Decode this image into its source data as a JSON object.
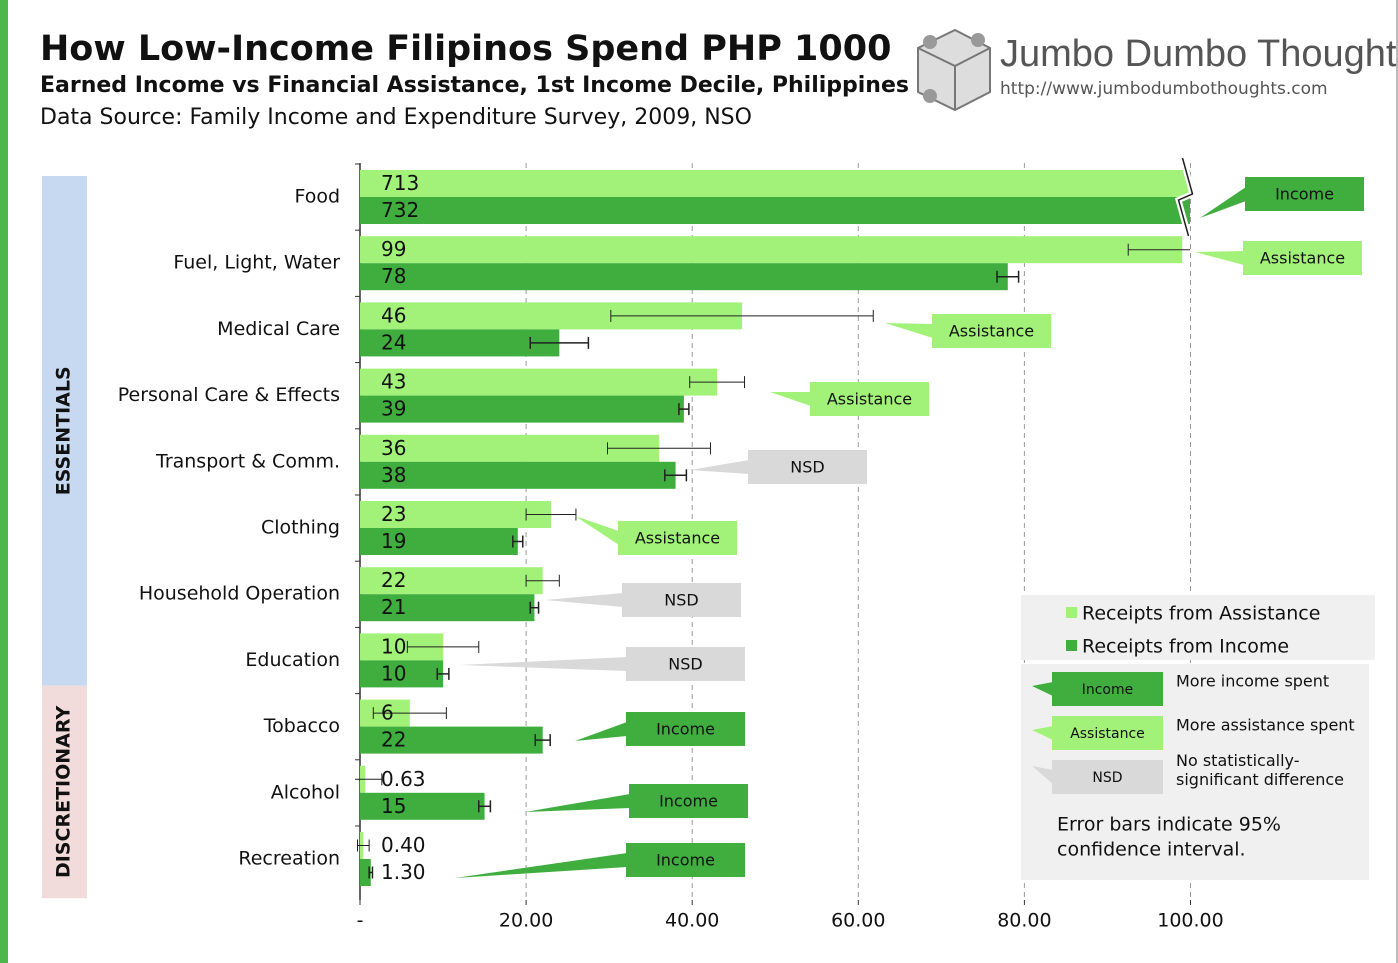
{
  "chart_data": {
    "type": "bar",
    "title": "How Low-Income Filipinos Spend PHP 1000",
    "subtitle": "Earned Income vs Financial Assistance, 1st Income Decile, Philippines",
    "source": "Data Source: Family Income and Expenditure Survey, 2009, NSO",
    "categories": [
      "Food",
      "Fuel, Light, Water",
      "Medical Care",
      "Personal Care & Effects",
      "Transport & Comm.",
      "Clothing",
      "Household Operation",
      "Education",
      "Tobacco",
      "Alcohol",
      "Recreation"
    ],
    "groups": [
      {
        "label": "ESSENTIALS",
        "count": 8,
        "color": "#c6d9f1"
      },
      {
        "label": "DISCRETIONARY",
        "count": 3,
        "color": "#f2dcdb"
      }
    ],
    "series": [
      {
        "name": "Receipts from Assistance",
        "color": "#a2f27a",
        "values": [
          713,
          99,
          46,
          43,
          36,
          23,
          22,
          10,
          6,
          0.63,
          0.4
        ],
        "value_labels": [
          "713",
          "99",
          "46",
          "43",
          "36",
          "23",
          "22",
          "10",
          "6",
          "0.63",
          "0.40"
        ],
        "errors": [
          null,
          6.5,
          15.8,
          3.3,
          6.2,
          3,
          2,
          4.3,
          4.4,
          2,
          0.7
        ]
      },
      {
        "name": "Receipts from Income",
        "color": "#3fae3f",
        "values": [
          732,
          78,
          24,
          39,
          38,
          19,
          21,
          10,
          22,
          15,
          1.3
        ],
        "value_labels": [
          "732",
          "78",
          "24",
          "39",
          "38",
          "19",
          "21",
          "10",
          "22",
          "15",
          "1.30"
        ],
        "errors": [
          null,
          1.3,
          3.5,
          0.6,
          1.3,
          0.6,
          0.5,
          0.7,
          0.9,
          0.7,
          0.2
        ]
      }
    ],
    "verdicts": [
      "Income",
      "Assistance",
      "Assistance",
      "Assistance",
      "NSD",
      "Assistance",
      "NSD",
      "NSD",
      "Income",
      "Income",
      "Income"
    ],
    "keys": [
      {
        "label": "Income",
        "color": "#3fae3f",
        "lines": [
          "More income spent"
        ]
      },
      {
        "label": "Assistance",
        "color": "#a2f27a",
        "lines": [
          "More assistance spent"
        ]
      },
      {
        "label": "NSD",
        "color": "#d9d9d9",
        "lines": [
          "No statistically-",
          "significant difference"
        ]
      }
    ],
    "note": [
      "Error bars indicate 95%",
      "confidence interval."
    ],
    "xlim": [
      0,
      120
    ],
    "xticks": [
      {
        "value": 0,
        "label": "-"
      },
      {
        "value": 20,
        "label": "20.00"
      },
      {
        "value": 40,
        "label": "40.00"
      },
      {
        "value": 60,
        "label": "60.00"
      },
      {
        "value": 80,
        "label": "80.00"
      },
      {
        "value": 100,
        "label": "100.00"
      }
    ],
    "axis_break": 100,
    "grid": true
  },
  "logo": {
    "name": "Jumbo Dumbo Thoughts",
    "url": "http://www.jumbodumbothoughts.com"
  }
}
